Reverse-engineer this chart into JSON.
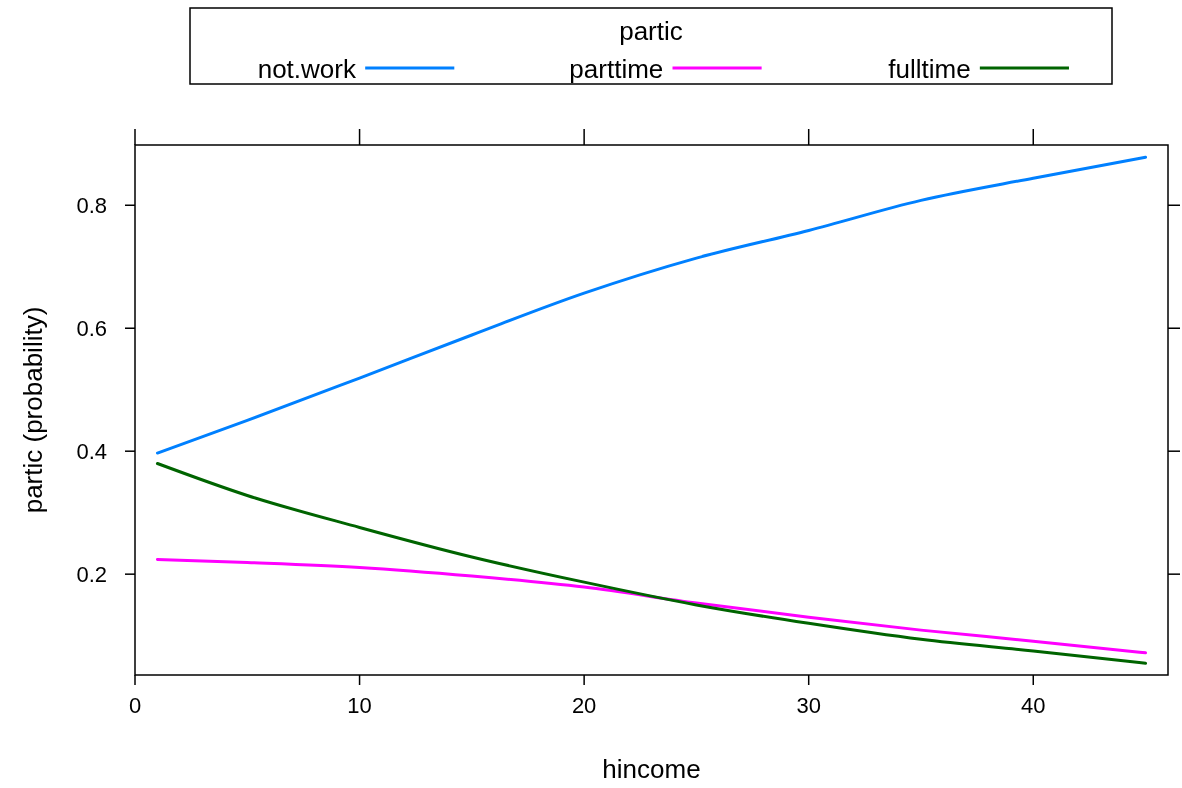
{
  "chart_data": {
    "type": "line",
    "xlabel": "hincome",
    "ylabel": "partic (probability)",
    "legend_title": "partic",
    "legend": "top",
    "x": [
      1,
      5,
      10,
      15,
      20,
      25,
      30,
      35,
      40,
      45
    ],
    "series": [
      {
        "name": "not.work",
        "color": "#0080ff",
        "values": [
          0.397,
          0.45,
          0.519,
          0.589,
          0.657,
          0.714,
          0.759,
          0.808,
          0.844,
          0.878
        ]
      },
      {
        "name": "parttime",
        "color": "#ff00ff",
        "values": [
          0.224,
          0.219,
          0.211,
          0.197,
          0.179,
          0.153,
          0.13,
          0.109,
          0.091,
          0.072
        ]
      },
      {
        "name": "fulltime",
        "color": "#006400",
        "values": [
          0.38,
          0.328,
          0.276,
          0.228,
          0.187,
          0.15,
          0.12,
          0.094,
          0.075,
          0.055
        ]
      }
    ],
    "xlim": [
      0,
      46
    ],
    "xticks": [
      0,
      10,
      20,
      30,
      40
    ],
    "ylim": [
      0.036,
      0.898
    ],
    "yticks": [
      0.2,
      0.4,
      0.6,
      0.8
    ],
    "line_style": "solid"
  }
}
